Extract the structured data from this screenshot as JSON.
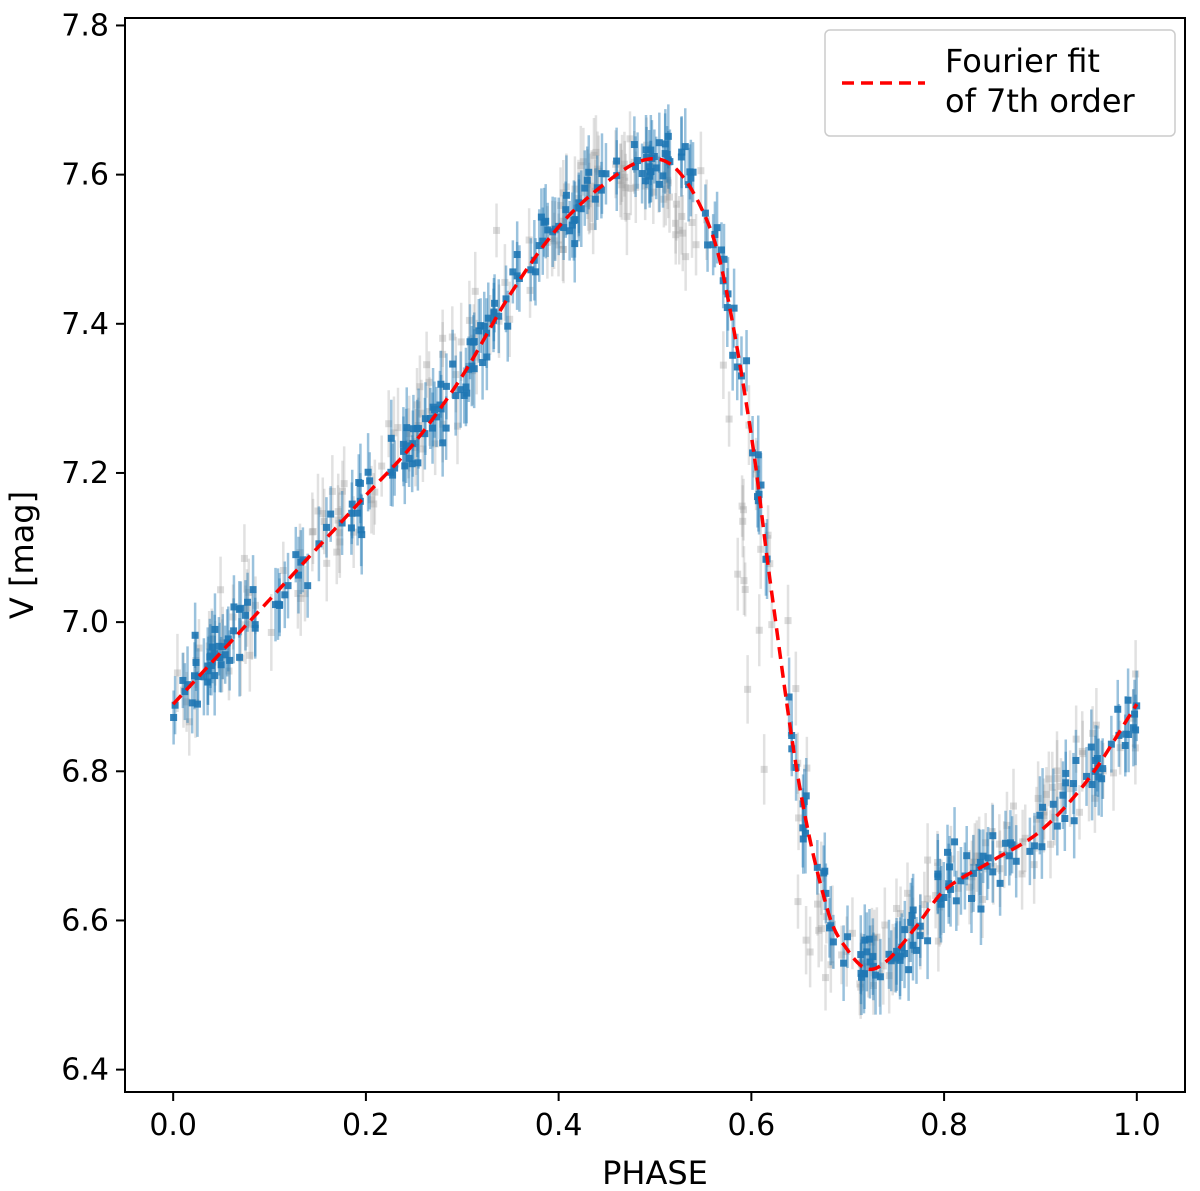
{
  "chart_data": {
    "type": "scatter",
    "title": "",
    "xlabel": "PHASE",
    "ylabel": "V [mag]",
    "xlim": [
      -0.05,
      1.05
    ],
    "ylim": [
      6.37,
      7.81
    ],
    "xticks": [
      "0.0",
      "0.2",
      "0.4",
      "0.6",
      "0.8",
      "1.0"
    ],
    "yticks": [
      "6.4",
      "6.6",
      "6.8",
      "7.0",
      "7.2",
      "7.4",
      "7.6",
      "7.8"
    ],
    "grid": false,
    "legend": {
      "position": "top-right",
      "entries": [
        {
          "label_line1": "Fourier fit",
          "label_line2": "of 7th order",
          "style": "dashed",
          "color": "#ff0000"
        }
      ]
    },
    "series": [
      {
        "name": "Blue observations",
        "color": "#1f77b4",
        "marker": "square",
        "errorbar": 0.045,
        "spread": 0.038,
        "count": 330,
        "seed": 11
      },
      {
        "name": "Grey observations",
        "color": "#9a9a9a",
        "marker": "square",
        "errorbar": 0.045,
        "spread": 0.045,
        "count": 260,
        "seed": 23
      },
      {
        "name": "Fourier fit of 7th order",
        "color": "#ff0000",
        "style": "dashed",
        "curve_x": [
          0.0,
          0.05,
          0.1,
          0.15,
          0.2,
          0.25,
          0.3,
          0.35,
          0.4,
          0.45,
          0.49,
          0.52,
          0.55,
          0.57,
          0.6,
          0.62,
          0.65,
          0.68,
          0.7,
          0.72,
          0.74,
          0.77,
          0.8,
          0.85,
          0.9,
          0.95,
          1.0
        ],
        "curve_y": [
          6.89,
          6.96,
          7.03,
          7.1,
          7.17,
          7.24,
          7.33,
          7.44,
          7.53,
          7.59,
          7.62,
          7.61,
          7.55,
          7.47,
          7.25,
          7.05,
          6.78,
          6.61,
          6.56,
          6.535,
          6.545,
          6.59,
          6.64,
          6.68,
          6.72,
          6.79,
          6.89
        ]
      }
    ]
  }
}
